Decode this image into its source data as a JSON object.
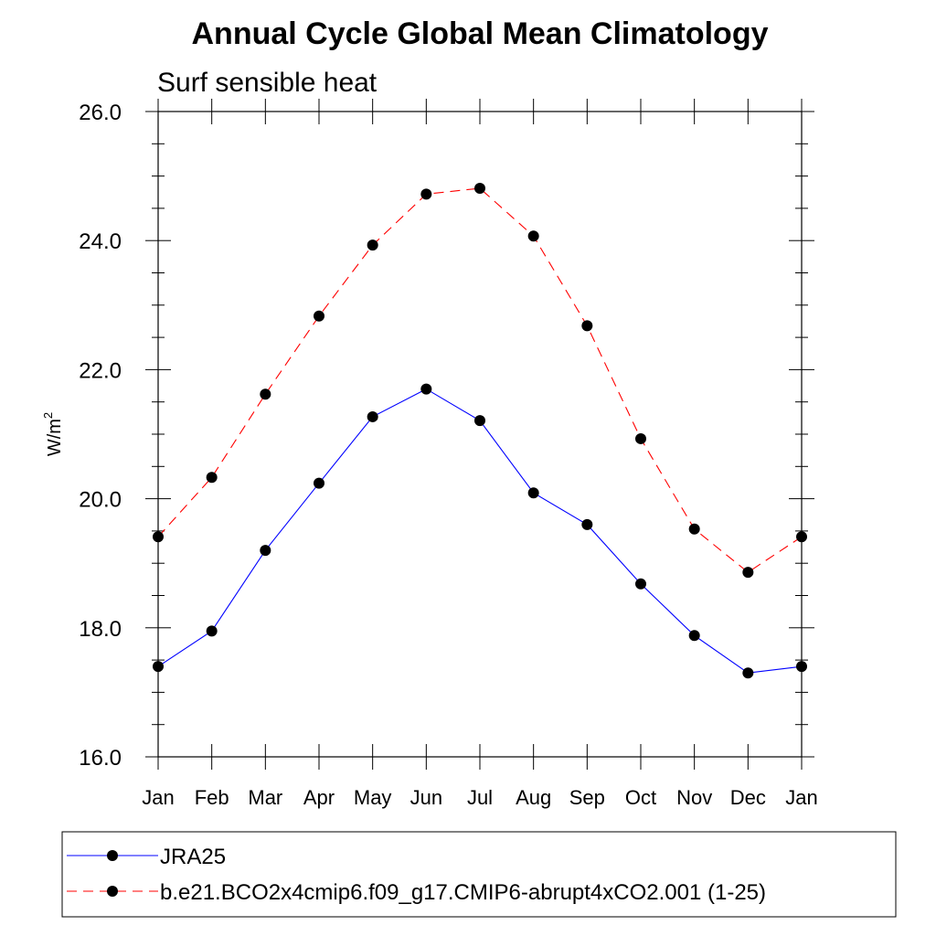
{
  "chart_data": {
    "type": "line",
    "title": "Annual Cycle Global Mean Climatology",
    "subtitle": "Surf sensible heat",
    "ylabel": "W/m",
    "ylabel_superscript": "2",
    "xlabel": "",
    "categories": [
      "Jan",
      "Feb",
      "Mar",
      "Apr",
      "May",
      "Jun",
      "Jul",
      "Aug",
      "Sep",
      "Oct",
      "Nov",
      "Dec",
      "Jan"
    ],
    "ylim": [
      16.0,
      26.0
    ],
    "yticks": [
      "16.0",
      "18.0",
      "20.0",
      "22.0",
      "24.0",
      "26.0"
    ],
    "grid": false,
    "legend_position": "bottom",
    "series": [
      {
        "name": "JRA25",
        "color": "#0000ff",
        "line_style": "solid",
        "marker": "filled-circle",
        "values": [
          17.4,
          17.95,
          19.2,
          20.24,
          21.27,
          21.7,
          21.21,
          20.09,
          19.6,
          18.68,
          17.88,
          17.3,
          17.4
        ]
      },
      {
        "name": "b.e21.BCO2x4cmip6.f09_g17.CMIP6-abrupt4xCO2.001 (1-25)",
        "color": "#ff0000",
        "line_style": "dashed",
        "marker": "filled-circle",
        "values": [
          19.41,
          20.33,
          21.62,
          22.83,
          23.93,
          24.72,
          24.81,
          24.07,
          22.68,
          20.93,
          19.53,
          18.86,
          19.41
        ]
      }
    ]
  }
}
